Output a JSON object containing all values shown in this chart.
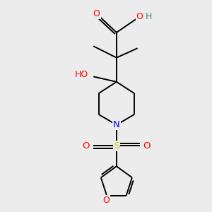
{
  "bg_color": "#ececec",
  "atom_colors": {
    "C": "#000000",
    "O": "#ff0000",
    "N": "#0000ff",
    "S": "#cccc00",
    "H": "#4a8080"
  },
  "figsize": [
    3.0,
    3.0
  ],
  "dpi": 100
}
